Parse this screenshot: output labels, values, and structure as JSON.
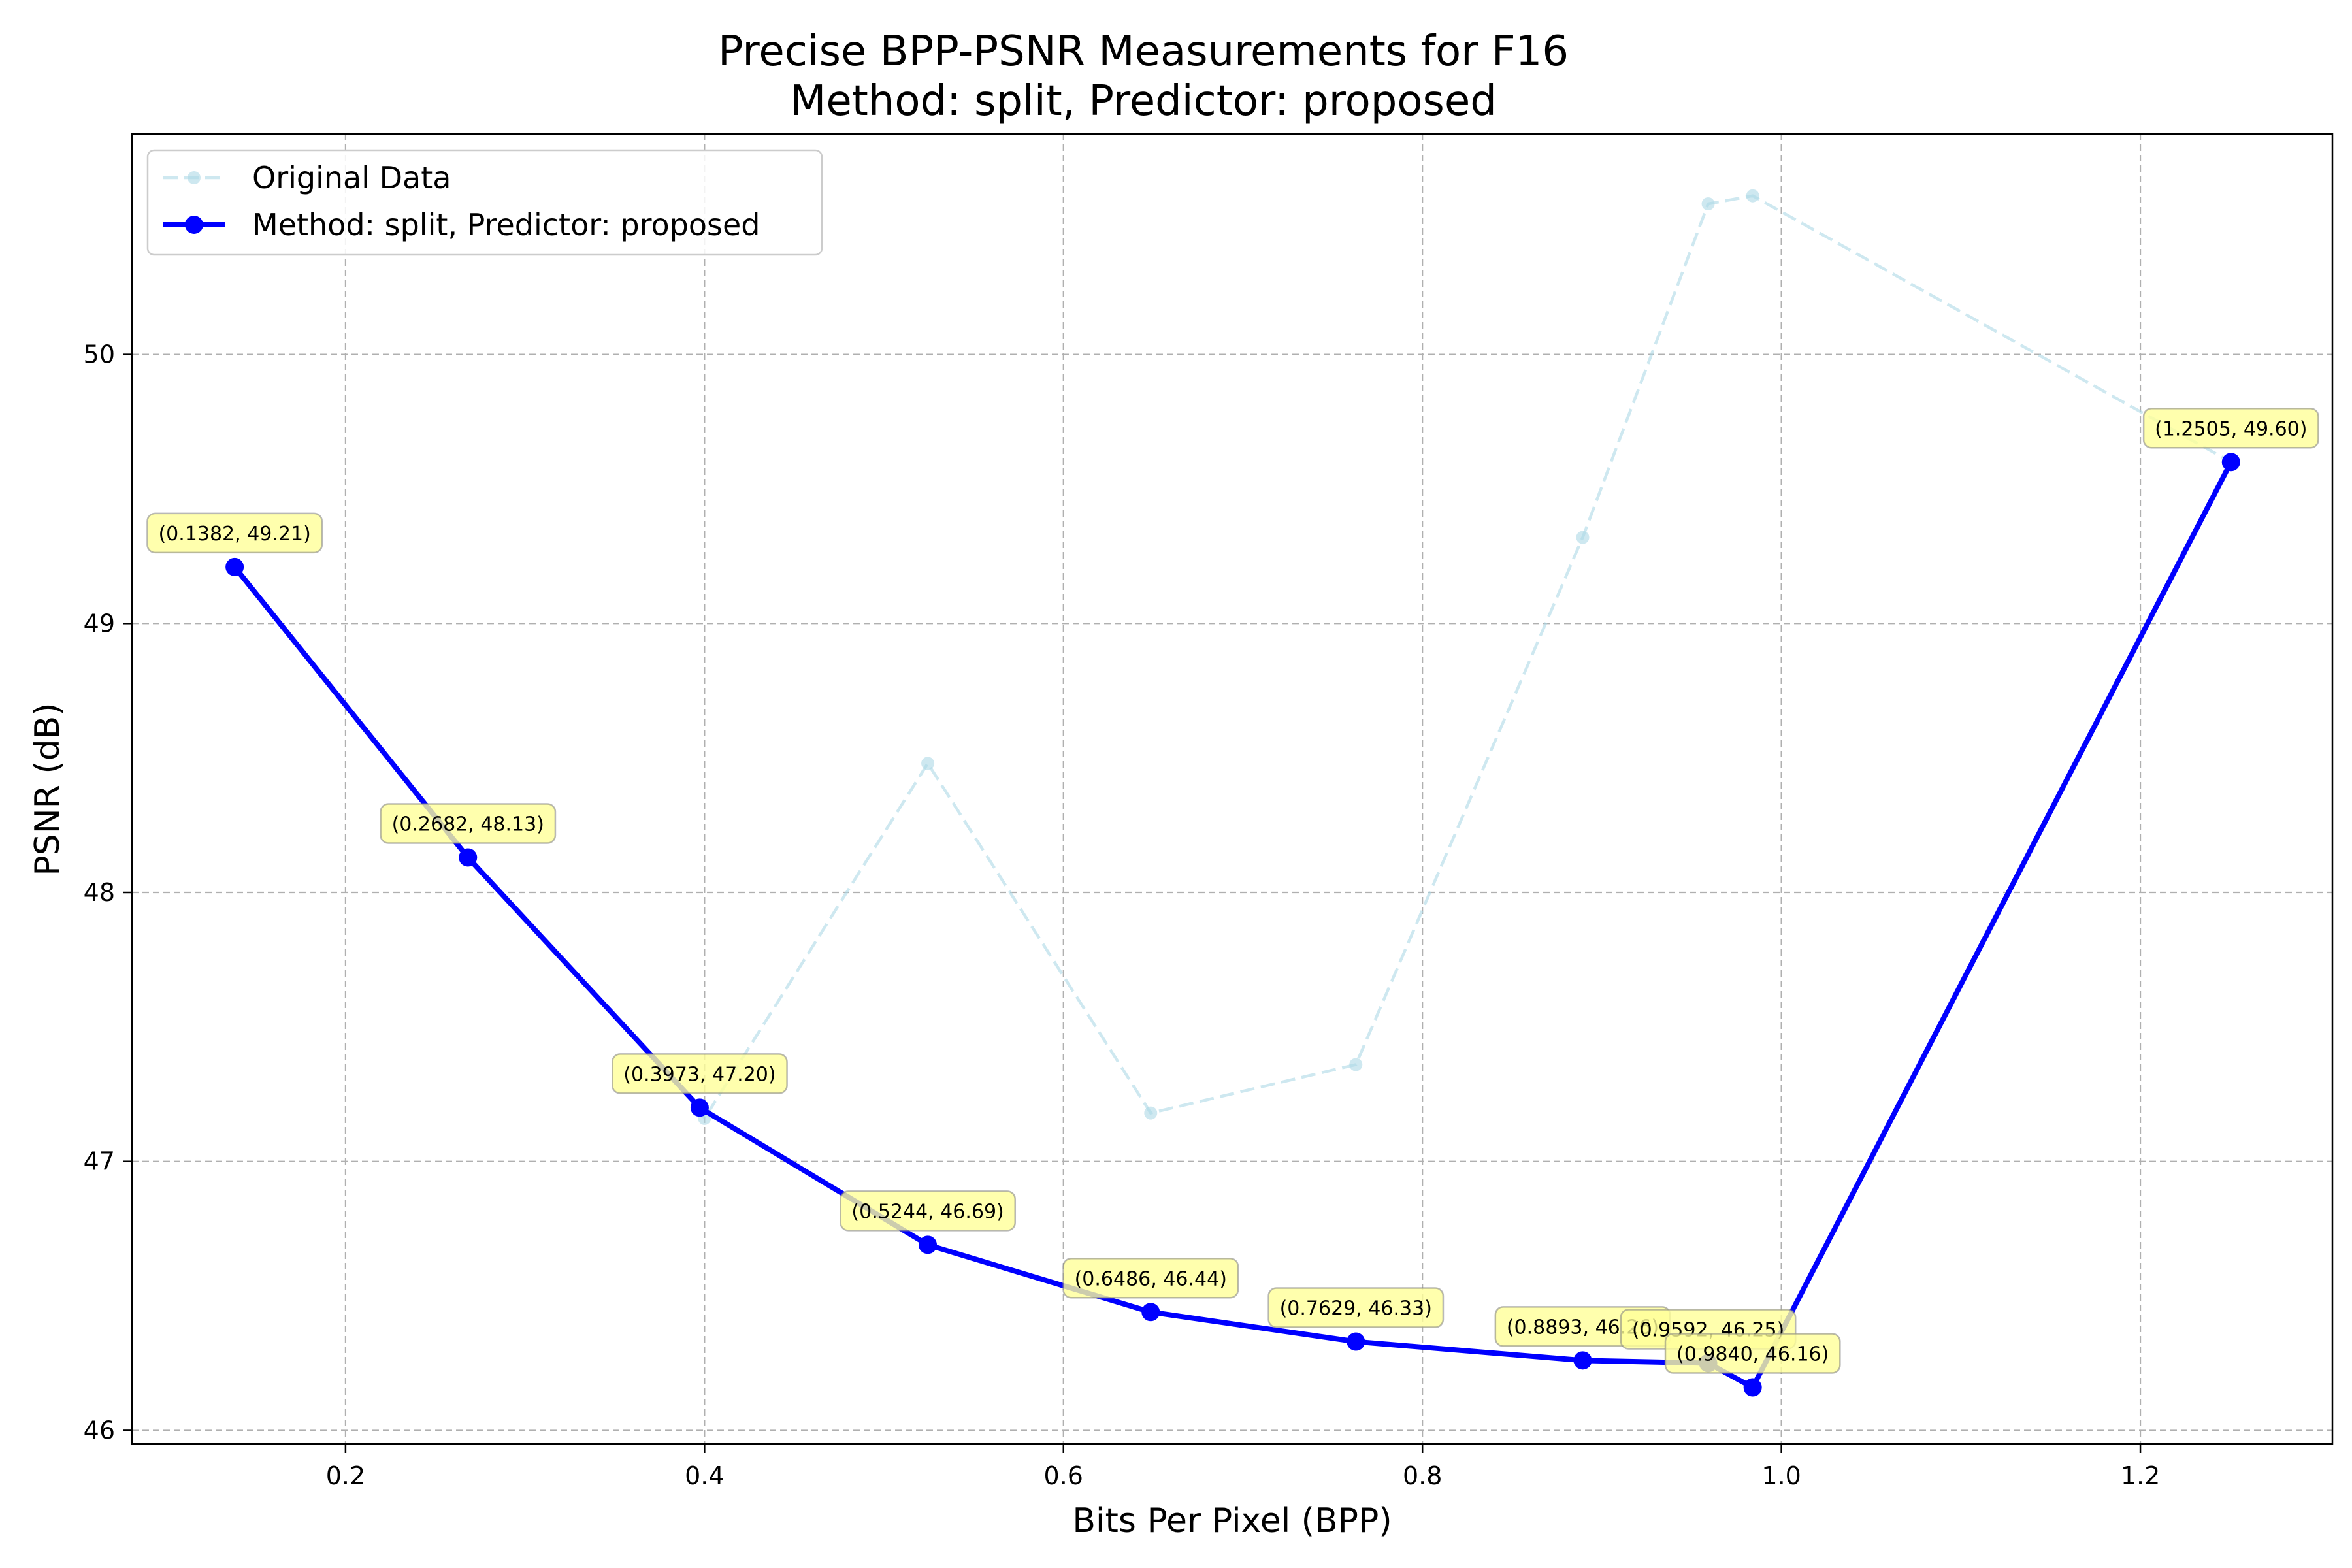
{
  "chart_data": {
    "type": "line",
    "title": "Precise BPP-PSNR Measurements for F16",
    "subtitle": "Method: split, Predictor: proposed",
    "xlabel": "Bits Per Pixel (BPP)",
    "ylabel": "PSNR (dB)",
    "xlim": [
      0.081,
      1.307
    ],
    "ylim": [
      45.95,
      50.82
    ],
    "x_ticks": [
      0.2,
      0.4,
      0.6,
      0.8,
      1.0,
      1.2
    ],
    "x_tick_labels": [
      "0.2",
      "0.4",
      "0.6",
      "0.8",
      "1.0",
      "1.2"
    ],
    "y_ticks": [
      46,
      47,
      48,
      49,
      50
    ],
    "y_tick_labels": [
      "46",
      "47",
      "48",
      "49",
      "50"
    ],
    "grid": true,
    "legend_position": "top-left",
    "series": [
      {
        "name": "Original Data",
        "style": "dashed",
        "color": "#add8e6",
        "x": [
          0.1382,
          0.2682,
          0.3973,
          0.4,
          0.5244,
          0.6486,
          0.7629,
          0.8893,
          0.9592,
          0.984,
          1.2505
        ],
        "y": [
          49.21,
          48.13,
          47.2,
          47.16,
          48.48,
          47.18,
          47.36,
          49.32,
          50.56,
          50.59,
          49.6
        ]
      },
      {
        "name": "Method: split, Predictor: proposed",
        "style": "solid",
        "color": "#0000ff",
        "x": [
          0.1382,
          0.2682,
          0.3973,
          0.5244,
          0.6486,
          0.7629,
          0.8893,
          0.9592,
          0.984,
          1.2505
        ],
        "y": [
          49.21,
          48.13,
          47.2,
          46.69,
          46.44,
          46.33,
          46.26,
          46.25,
          46.16,
          49.6
        ]
      }
    ],
    "annotations": [
      "(0.1382, 49.21)",
      "(0.2682, 48.13)",
      "(0.3973, 47.20)",
      "(0.5244, 46.69)",
      "(0.6486, 46.44)",
      "(0.7629, 46.33)",
      "(0.8893, 46.26)",
      "(0.9592, 46.25)",
      "(0.9840, 46.16)",
      "(1.2505, 49.60)"
    ]
  }
}
